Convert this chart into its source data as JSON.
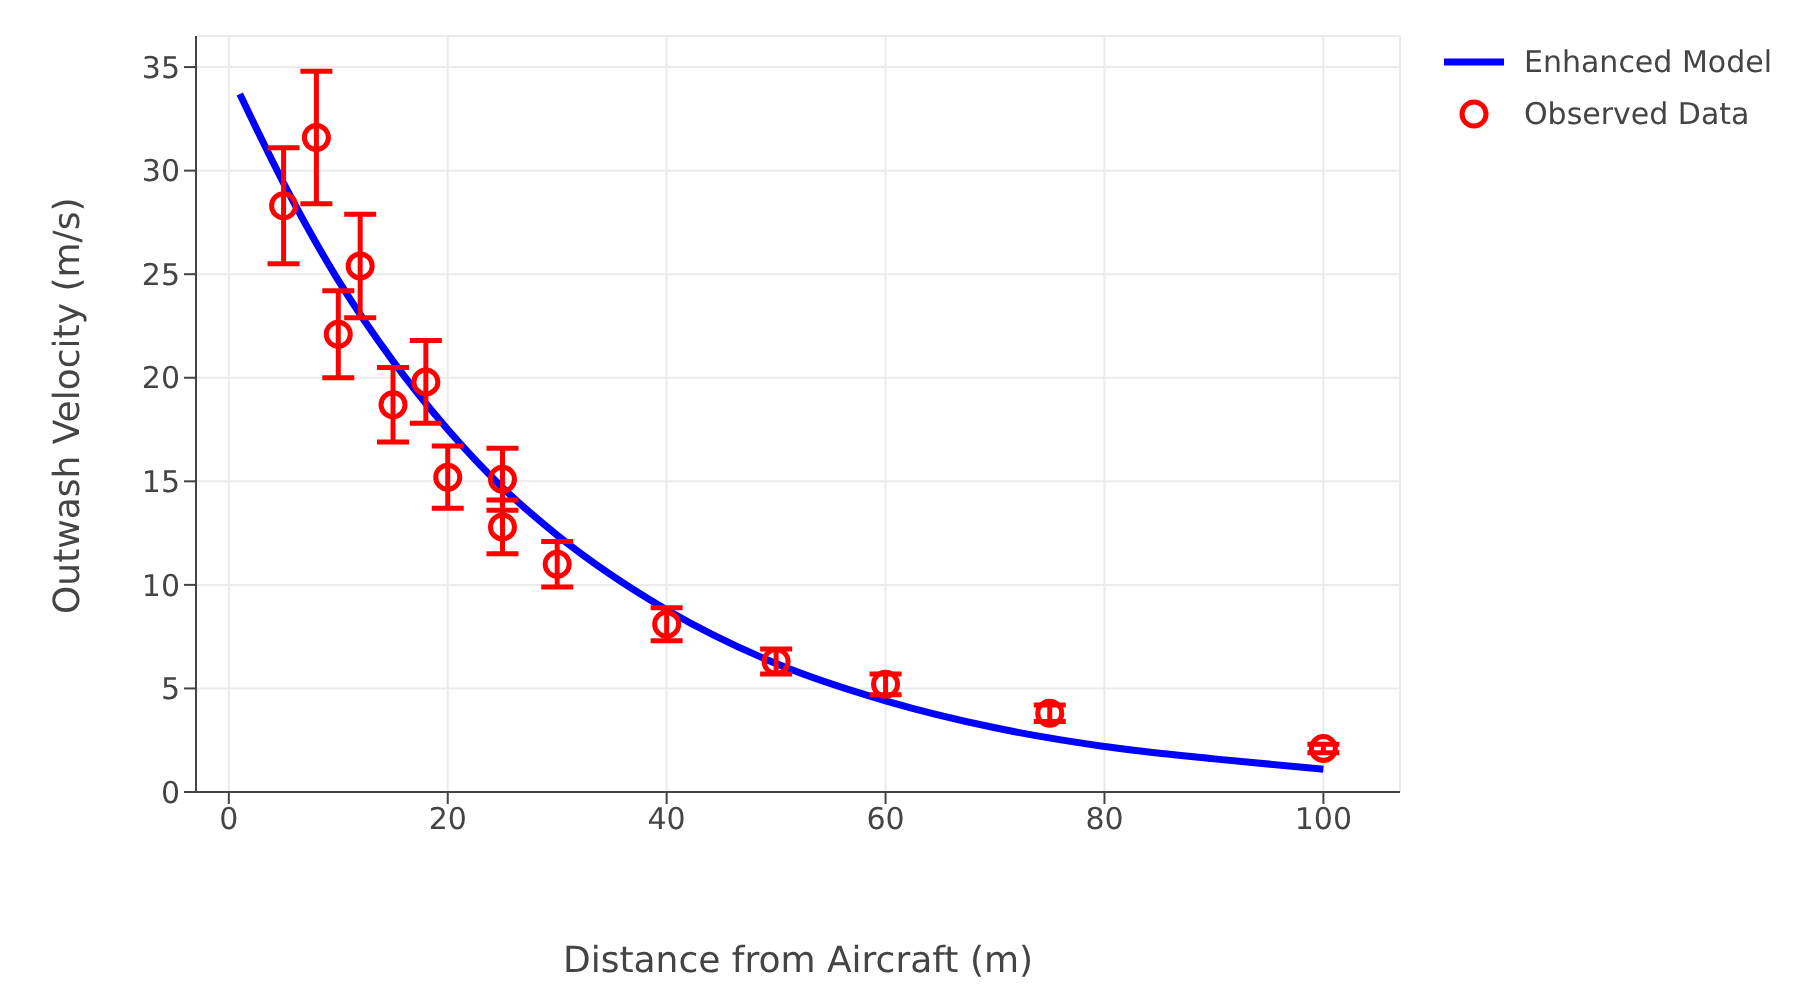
{
  "chart_data": {
    "type": "scatter",
    "xlabel": "Distance from Aircraft (m)",
    "ylabel": "Outwash Velocity  (m/s)",
    "xlim": [
      -3,
      107
    ],
    "ylim": [
      0,
      36.5
    ],
    "xticks": [
      0,
      20,
      40,
      60,
      80,
      100
    ],
    "yticks": [
      0,
      5,
      10,
      15,
      20,
      25,
      30,
      35
    ],
    "grid": true,
    "legend": "top right",
    "series": [
      {
        "name": "Enhanced Model",
        "type": "line",
        "color": "#0000ff",
        "marker": "none",
        "line_style": "solid",
        "x": [
          1,
          5,
          10,
          15,
          20,
          25,
          30,
          40,
          50,
          60,
          70,
          80,
          90,
          100
        ],
        "values": [
          33.7,
          29.4,
          24.7,
          20.8,
          17.5,
          14.7,
          12.4,
          8.8,
          6.2,
          4.4,
          3.1,
          2.2,
          1.6,
          1.1
        ]
      },
      {
        "name": "Observed Data",
        "color": "#ff0000",
        "marker": "circle",
        "x": [
          5,
          8,
          10,
          12,
          15,
          18,
          20,
          25,
          25,
          30,
          40,
          50,
          60,
          75,
          100
        ],
        "values": [
          28.3,
          31.6,
          22.1,
          25.4,
          18.7,
          19.8,
          15.2,
          15.1,
          12.8,
          11.0,
          8.1,
          6.3,
          5.2,
          3.8,
          2.1
        ],
        "errors": [
          2.8,
          3.2,
          2.1,
          2.5,
          1.8,
          2.0,
          1.5,
          1.5,
          1.3,
          1.1,
          0.8,
          0.6,
          0.5,
          0.4,
          0.2
        ]
      }
    ]
  }
}
